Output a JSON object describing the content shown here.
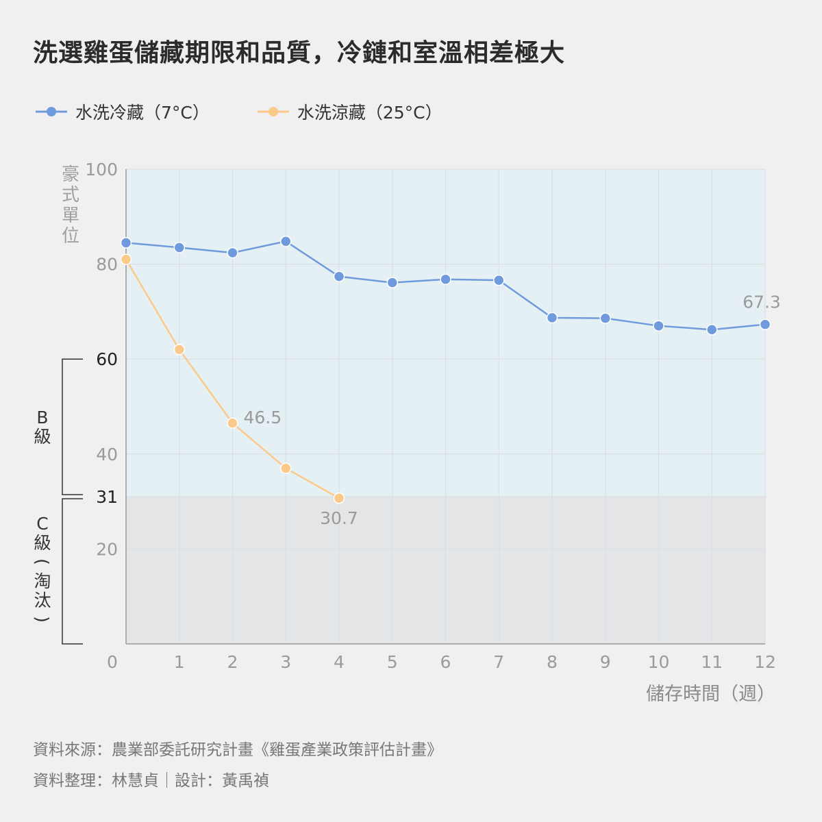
{
  "title": "洗選雞蛋儲藏期限和品質，冷鏈和室溫相差極大",
  "legend": [
    {
      "label": "水洗冷藏（7°C）",
      "color": "#6f9bdc"
    },
    {
      "label": "水洗涼藏（25°C）",
      "color": "#fbc98a"
    }
  ],
  "colors": {
    "grade_b_zone": "#e5f0f5",
    "grade_c_zone": "#e4e5e7",
    "grid": "#d8dde2",
    "axis": "#999999",
    "tick_text": "#9a9a9a",
    "threshold_text": "#222222",
    "bracket": "#333333"
  },
  "chart_data": {
    "type": "line",
    "xlabel": "儲存時間（週）",
    "ylabel": "豪式單位",
    "xlim": [
      0,
      12
    ],
    "ylim": [
      0,
      100
    ],
    "x_ticks": [
      "0",
      "1",
      "2",
      "3",
      "4",
      "5",
      "6",
      "7",
      "8",
      "9",
      "10",
      "11",
      "12"
    ],
    "y_ticks": [
      {
        "value": 100,
        "label": "100",
        "emphasis": false
      },
      {
        "value": 80,
        "label": "80",
        "emphasis": false
      },
      {
        "value": 60,
        "label": "60",
        "emphasis": true
      },
      {
        "value": 40,
        "label": "40",
        "emphasis": false
      },
      {
        "value": 31,
        "label": "31",
        "emphasis": true
      },
      {
        "value": 20,
        "label": "20",
        "emphasis": false
      }
    ],
    "grid": true,
    "zones": [
      {
        "from": 31,
        "to": 100,
        "name": "grade_b_zone"
      },
      {
        "from": 0,
        "to": 31,
        "name": "grade_c_zone"
      }
    ],
    "grade_brackets": [
      {
        "from": 31,
        "to": 60,
        "label": "B級"
      },
      {
        "from": 0,
        "to": 31,
        "label": "C級（淘汰）"
      }
    ],
    "series": [
      {
        "name": "水洗冷藏（7°C）",
        "color": "#6f9bdc",
        "x": [
          0,
          1,
          2,
          3,
          4,
          5,
          6,
          7,
          8,
          9,
          10,
          11,
          12
        ],
        "values": [
          84.5,
          83.5,
          82.4,
          84.8,
          77.4,
          76.1,
          76.8,
          76.6,
          68.7,
          68.6,
          67.0,
          66.2,
          67.3
        ]
      },
      {
        "name": "水洗涼藏（25°C）",
        "color": "#fbc98a",
        "x": [
          0,
          1,
          2,
          3,
          4
        ],
        "values": [
          81.0,
          62.0,
          46.5,
          37.0,
          30.7
        ]
      }
    ],
    "annotations": [
      {
        "series": 0,
        "index": 12,
        "text": "67.3",
        "position": "above"
      },
      {
        "series": 1,
        "index": 2,
        "text": "46.5",
        "position": "right"
      },
      {
        "series": 1,
        "index": 4,
        "text": "30.7",
        "position": "below"
      }
    ]
  },
  "footer": {
    "source": "資料來源：農業部委託研究計畫《雞蛋產業政策評估計畫》",
    "credit": "資料整理：林慧貞｜設計：黃禹禎"
  }
}
